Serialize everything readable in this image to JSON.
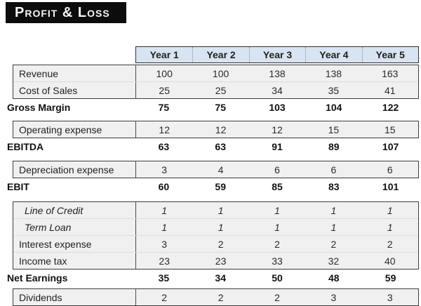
{
  "title": "Profit & Loss",
  "table": {
    "columns": [
      "Year 1",
      "Year 2",
      "Year 3",
      "Year 4",
      "Year 5"
    ],
    "sections": [
      {
        "rows": [
          {
            "label": "Revenue",
            "values": [
              "100",
              "100",
              "138",
              "138",
              "163"
            ]
          },
          {
            "label": "Cost of Sales",
            "values": [
              "25",
              "25",
              "34",
              "35",
              "41"
            ]
          }
        ],
        "summary": {
          "label": "Gross Margin",
          "values": [
            "75",
            "75",
            "103",
            "104",
            "122"
          ]
        }
      },
      {
        "rows": [
          {
            "label": "Operating expense",
            "values": [
              "12",
              "12",
              "12",
              "15",
              "15"
            ]
          }
        ],
        "summary": {
          "label": "EBITDA",
          "values": [
            "63",
            "63",
            "91",
            "89",
            "107"
          ]
        }
      },
      {
        "rows": [
          {
            "label": "Depreciation expense",
            "values": [
              "3",
              "4",
              "6",
              "6",
              "6"
            ]
          }
        ],
        "summary": {
          "label": "EBIT",
          "values": [
            "60",
            "59",
            "85",
            "83",
            "101"
          ]
        }
      },
      {
        "rows": [
          {
            "label": "Line of Credit",
            "values": [
              "1",
              "1",
              "1",
              "1",
              "1"
            ]
          },
          {
            "label": "Term Loan",
            "values": [
              "1",
              "1",
              "1",
              "1",
              "1"
            ]
          },
          {
            "label": "Interest expense",
            "values": [
              "3",
              "2",
              "2",
              "2",
              "2"
            ]
          },
          {
            "label": "Income tax",
            "values": [
              "23",
              "23",
              "33",
              "32",
              "40"
            ]
          }
        ],
        "summary": {
          "label": "Net Earnings",
          "values": [
            "35",
            "34",
            "50",
            "48",
            "59"
          ]
        }
      },
      {
        "rows": [
          {
            "label": "Dividends",
            "values": [
              "2",
              "2",
              "2",
              "3",
              "3"
            ]
          }
        ]
      }
    ]
  }
}
